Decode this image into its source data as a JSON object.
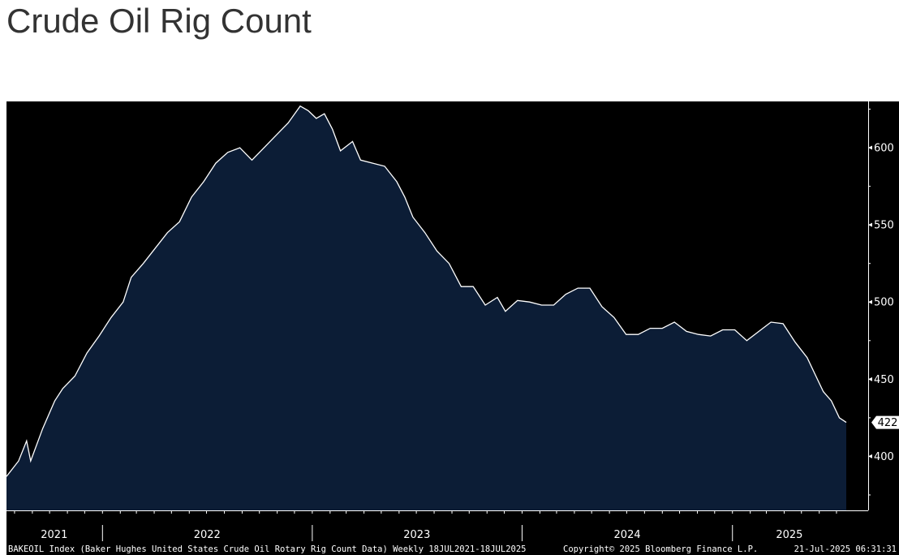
{
  "page": {
    "title": "Crude Oil Rig Count"
  },
  "colors": {
    "background": "#000000",
    "area_fill": "#0c1d36",
    "line": "#ffffff",
    "page_bg": "#ffffff",
    "title": "#333333"
  },
  "chart_data": {
    "type": "area",
    "title": "Crude Oil Rig Count",
    "xlabel": "",
    "ylabel": "",
    "ylim": [
      365,
      630
    ],
    "yticks": [
      400,
      450,
      500,
      550,
      600
    ],
    "grid": false,
    "legend": "none",
    "x_axis_labels": [
      "2021",
      "2022",
      "2023",
      "2024",
      "2025"
    ],
    "last_value_label": "422",
    "series": [
      {
        "points": [
          [
            "2021-07-18",
            387
          ],
          [
            "2021-08-08",
            397
          ],
          [
            "2021-08-22",
            410
          ],
          [
            "2021-08-29",
            397
          ],
          [
            "2021-09-19",
            418
          ],
          [
            "2021-10-10",
            436
          ],
          [
            "2021-10-24",
            444
          ],
          [
            "2021-11-14",
            452
          ],
          [
            "2021-12-05",
            467
          ],
          [
            "2021-12-26",
            478
          ],
          [
            "2022-01-16",
            490
          ],
          [
            "2022-02-06",
            500
          ],
          [
            "2022-02-20",
            516
          ],
          [
            "2022-03-13",
            525
          ],
          [
            "2022-04-03",
            535
          ],
          [
            "2022-04-24",
            545
          ],
          [
            "2022-05-15",
            552
          ],
          [
            "2022-06-05",
            568
          ],
          [
            "2022-06-26",
            578
          ],
          [
            "2022-07-17",
            590
          ],
          [
            "2022-08-07",
            597
          ],
          [
            "2022-08-28",
            600
          ],
          [
            "2022-09-18",
            592
          ],
          [
            "2022-10-09",
            600
          ],
          [
            "2022-10-30",
            608
          ],
          [
            "2022-11-20",
            616
          ],
          [
            "2022-12-11",
            627
          ],
          [
            "2022-12-25",
            624
          ],
          [
            "2023-01-08",
            619
          ],
          [
            "2023-01-22",
            622
          ],
          [
            "2023-02-05",
            612
          ],
          [
            "2023-02-19",
            598
          ],
          [
            "2023-03-12",
            604
          ],
          [
            "2023-03-26",
            592
          ],
          [
            "2023-04-16",
            590
          ],
          [
            "2023-05-07",
            588
          ],
          [
            "2023-05-28",
            578
          ],
          [
            "2023-06-11",
            568
          ],
          [
            "2023-06-25",
            555
          ],
          [
            "2023-07-16",
            545
          ],
          [
            "2023-08-06",
            533
          ],
          [
            "2023-08-27",
            525
          ],
          [
            "2023-09-17",
            510
          ],
          [
            "2023-10-08",
            510
          ],
          [
            "2023-10-29",
            498
          ],
          [
            "2023-11-19",
            503
          ],
          [
            "2023-12-03",
            494
          ],
          [
            "2023-12-24",
            501
          ],
          [
            "2024-01-14",
            500
          ],
          [
            "2024-02-04",
            498
          ],
          [
            "2024-02-25",
            498
          ],
          [
            "2024-03-17",
            505
          ],
          [
            "2024-04-07",
            509
          ],
          [
            "2024-04-28",
            509
          ],
          [
            "2024-05-19",
            497
          ],
          [
            "2024-06-09",
            490
          ],
          [
            "2024-06-30",
            479
          ],
          [
            "2024-07-21",
            479
          ],
          [
            "2024-08-11",
            483
          ],
          [
            "2024-09-01",
            483
          ],
          [
            "2024-09-22",
            487
          ],
          [
            "2024-10-13",
            481
          ],
          [
            "2024-11-03",
            479
          ],
          [
            "2024-11-24",
            478
          ],
          [
            "2024-12-15",
            482
          ],
          [
            "2025-01-05",
            482
          ],
          [
            "2025-01-26",
            475
          ],
          [
            "2025-02-16",
            481
          ],
          [
            "2025-03-09",
            487
          ],
          [
            "2025-03-30",
            486
          ],
          [
            "2025-04-20",
            474
          ],
          [
            "2025-05-11",
            464
          ],
          [
            "2025-05-25",
            453
          ],
          [
            "2025-06-08",
            442
          ],
          [
            "2025-06-22",
            436
          ],
          [
            "2025-07-06",
            425
          ],
          [
            "2025-07-18",
            422
          ]
        ]
      }
    ]
  },
  "footer": {
    "left": "BAKEOIL Index (Baker Hughes United States Crude Oil Rotary Rig Count Data)  Weekly 18JUL2021-18JUL2025",
    "center": "Copyright© 2025 Bloomberg Finance L.P.",
    "right": "21-Jul-2025 06:31:31"
  }
}
